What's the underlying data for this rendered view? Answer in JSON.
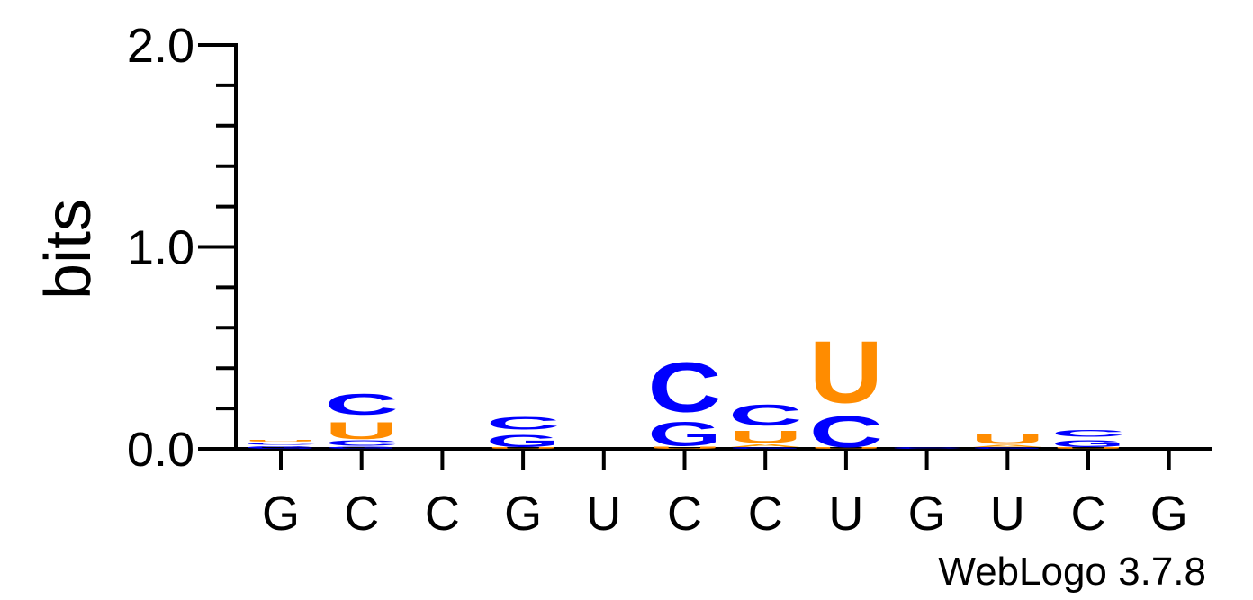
{
  "chart_data": {
    "type": "sequence-logo",
    "ylabel": "bits",
    "ylim": [
      0,
      2
    ],
    "y_ticks": [
      "0.0",
      "1.0",
      "2.0"
    ],
    "x_labels": [
      "G",
      "C",
      "C",
      "G",
      "U",
      "C",
      "C",
      "U",
      "G",
      "U",
      "C",
      "G"
    ],
    "colors": {
      "A": "#ff9900",
      "C": "#0000ff",
      "G": "#0000ff",
      "U": "#ff8c00"
    },
    "positions": [
      {
        "label": "G",
        "stack": [
          {
            "letter": "G",
            "bits": 0.02
          },
          {
            "letter": "C",
            "bits": 0.015
          },
          {
            "letter": "U",
            "bits": 0.01
          }
        ]
      },
      {
        "label": "C",
        "stack": [
          {
            "letter": "G",
            "bits": 0.015
          },
          {
            "letter": "C",
            "bits": 0.035
          },
          {
            "letter": "U",
            "bits": 0.12
          },
          {
            "letter": "C",
            "bits": 0.15
          }
        ]
      },
      {
        "label": "C",
        "stack": []
      },
      {
        "label": "G",
        "stack": [
          {
            "letter": "U",
            "bits": 0.01
          },
          {
            "letter": "G",
            "bits": 0.085
          },
          {
            "letter": "C",
            "bits": 0.09
          }
        ]
      },
      {
        "label": "U",
        "stack": []
      },
      {
        "label": "C",
        "stack": [
          {
            "letter": "U",
            "bits": 0.015
          },
          {
            "letter": "G",
            "bits": 0.17
          },
          {
            "letter": "C",
            "bits": 0.35
          }
        ]
      },
      {
        "label": "C",
        "stack": [
          {
            "letter": "G",
            "bits": 0.01
          },
          {
            "letter": "A",
            "bits": 0.02
          },
          {
            "letter": "U",
            "bits": 0.085
          },
          {
            "letter": "C",
            "bits": 0.15
          }
        ]
      },
      {
        "label": "U",
        "stack": [
          {
            "letter": "U",
            "bits": 0.01
          },
          {
            "letter": "C",
            "bits": 0.22
          },
          {
            "letter": "U",
            "bits": 0.44
          }
        ]
      },
      {
        "label": "G",
        "stack": [
          {
            "letter": "C",
            "bits": 0.01
          }
        ]
      },
      {
        "label": "U",
        "stack": [
          {
            "letter": "G",
            "bits": 0.01
          },
          {
            "letter": "A",
            "bits": 0.015
          },
          {
            "letter": "U",
            "bits": 0.07
          }
        ]
      },
      {
        "label": "C",
        "stack": [
          {
            "letter": "U",
            "bits": 0.01
          },
          {
            "letter": "G",
            "bits": 0.05
          },
          {
            "letter": "C",
            "bits": 0.05
          }
        ]
      },
      {
        "label": "G",
        "stack": []
      }
    ]
  },
  "footer": {
    "credit": "WebLogo 3.7.8"
  }
}
